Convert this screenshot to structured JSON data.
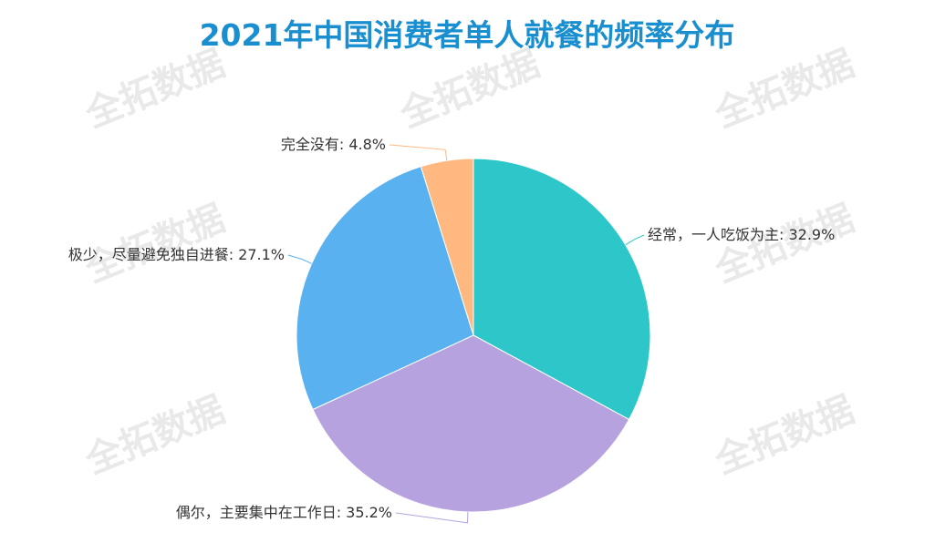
{
  "watermark": "全拓数据",
  "colors": {
    "title": "#1a8fd0",
    "leader_fallback": "#999999"
  },
  "chart_data": {
    "type": "pie",
    "title": "2021年中国消费者单人就餐的频率分布",
    "slices": [
      {
        "label": "经常，一人吃饭为主",
        "value": 32.9,
        "display": "32.9%",
        "color": "#2ec7c9"
      },
      {
        "label": "偶尔，主要集中在工作日",
        "value": 35.2,
        "display": "35.2%",
        "color": "#b6a2de"
      },
      {
        "label": "极少，尽量避免独自进餐",
        "value": 27.1,
        "display": "27.1%",
        "color": "#5ab1ef"
      },
      {
        "label": "完全没有",
        "value": 4.8,
        "display": "4.8%",
        "color": "#ffb980"
      }
    ],
    "legend": "none",
    "label_format": "{label}: {display}"
  }
}
